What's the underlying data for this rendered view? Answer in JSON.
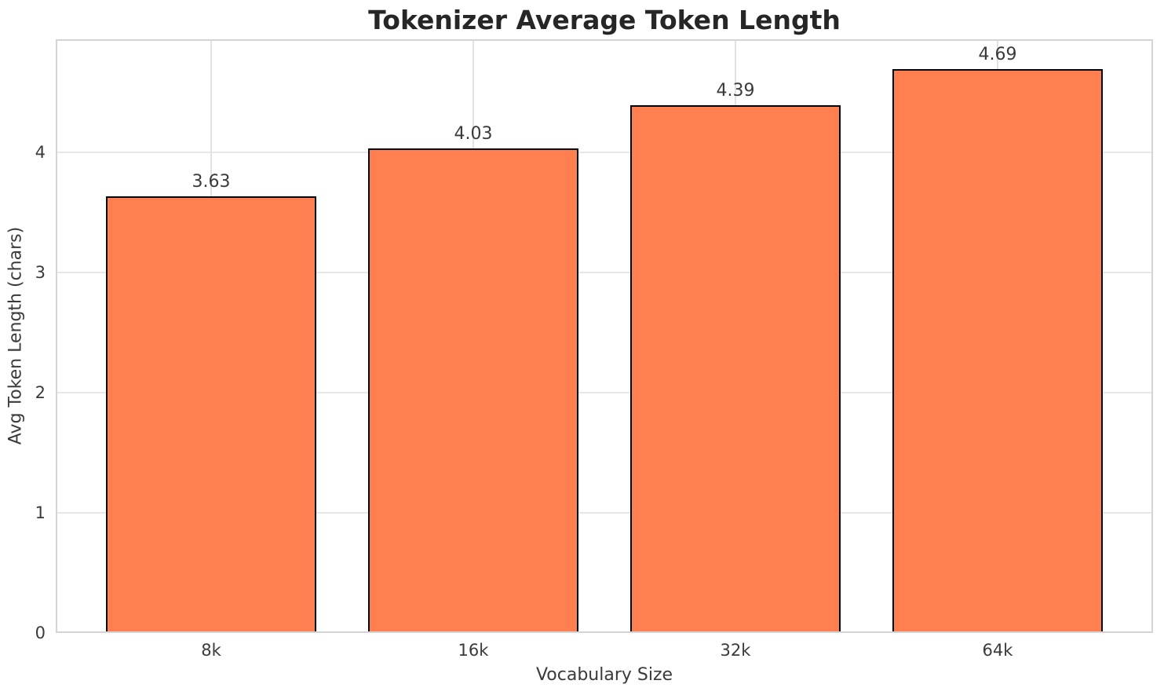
{
  "chart_data": {
    "type": "bar",
    "title": "Tokenizer Average Token Length",
    "xlabel": "Vocabulary Size",
    "ylabel": "Avg Token Length (chars)",
    "categories": [
      "8k",
      "16k",
      "32k",
      "64k"
    ],
    "values": [
      3.63,
      4.03,
      4.39,
      4.69
    ],
    "value_labels": [
      "3.63",
      "4.03",
      "4.39",
      "4.69"
    ],
    "yticks": [
      "0",
      "1",
      "2",
      "3",
      "4"
    ],
    "ytick_values": [
      0,
      1,
      2,
      3,
      4
    ],
    "ylim": [
      0,
      4.94
    ],
    "grid": true,
    "legend_position": "none",
    "bar_color": "#FF7F50",
    "bar_edge_color": "#000000",
    "grid_color": "#e7e7e7",
    "spine_color": "#d4d4d4",
    "text_color": "#3a3a3a",
    "title_color": "#262626",
    "background_color": "#ffffff"
  }
}
